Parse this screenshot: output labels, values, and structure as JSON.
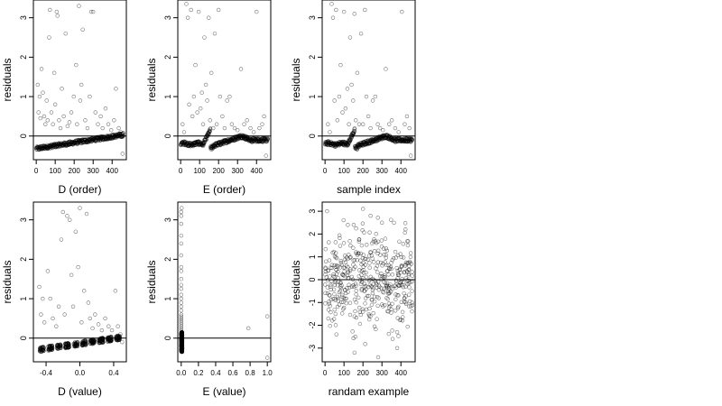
{
  "chart_data": [
    {
      "type": "scatter",
      "xlabel": "D (order)",
      "ylabel": "residuals",
      "xlim": [
        -15,
        475
      ],
      "ylim": [
        -0.6,
        3.45
      ],
      "xticks": [
        0,
        100,
        200,
        300,
        400
      ],
      "xtick_labels": [
        "0",
        "100",
        "200",
        "300",
        "400"
      ],
      "yticks": [
        0,
        1,
        2,
        3
      ],
      "ytick_labels": [
        "0",
        "1",
        "2",
        "3"
      ],
      "hline": 0,
      "gen": {
        "kind": "trend",
        "n": 460,
        "x0": 0,
        "x1": 460,
        "y0": -0.32,
        "y1": 0.03,
        "spread": 0.05
      },
      "points": [
        [
          8,
          1.3
        ],
        [
          12,
          0.6
        ],
        [
          18,
          1.0
        ],
        [
          22,
          0.45
        ],
        [
          28,
          1.7
        ],
        [
          35,
          1.1
        ],
        [
          42,
          0.5
        ],
        [
          48,
          0.3
        ],
        [
          55,
          0.9
        ],
        [
          60,
          0.4
        ],
        [
          68,
          2.5
        ],
        [
          72,
          3.2
        ],
        [
          80,
          0.6
        ],
        [
          88,
          0.3
        ],
        [
          95,
          1.6
        ],
        [
          100,
          0.8
        ],
        [
          108,
          3.15
        ],
        [
          112,
          3.05
        ],
        [
          120,
          0.4
        ],
        [
          128,
          0.2
        ],
        [
          135,
          1.2
        ],
        [
          145,
          0.5
        ],
        [
          155,
          2.6
        ],
        [
          165,
          0.25
        ],
        [
          175,
          0.35
        ],
        [
          185,
          0.6
        ],
        [
          198,
          1.0
        ],
        [
          210,
          1.8
        ],
        [
          215,
          0.3
        ],
        [
          225,
          3.3
        ],
        [
          232,
          0.9
        ],
        [
          238,
          1.3
        ],
        [
          245,
          2.7
        ],
        [
          258,
          0.4
        ],
        [
          270,
          0.2
        ],
        [
          282,
          1.0
        ],
        [
          290,
          3.15
        ],
        [
          300,
          3.15
        ],
        [
          312,
          0.6
        ],
        [
          325,
          0.3
        ],
        [
          340,
          0.5
        ],
        [
          350,
          0.2
        ],
        [
          365,
          0.7
        ],
        [
          380,
          0.3
        ],
        [
          395,
          0.15
        ],
        [
          410,
          0.4
        ],
        [
          420,
          1.2
        ],
        [
          435,
          0.2
        ],
        [
          445,
          0.1
        ],
        [
          455,
          -0.45
        ]
      ]
    },
    {
      "type": "scatter",
      "xlabel": "E (order)",
      "ylabel": "residuals",
      "xlim": [
        -15,
        475
      ],
      "ylim": [
        -0.6,
        3.45
      ],
      "xticks": [
        0,
        100,
        200,
        300,
        400
      ],
      "xtick_labels": [
        "0",
        "100",
        "200",
        "300",
        "400"
      ],
      "yticks": [
        0,
        1,
        2,
        3
      ],
      "ytick_labels": [
        "0",
        "1",
        "2",
        "3"
      ],
      "hline": 0,
      "gen": {
        "kind": "zigzag",
        "n": 460,
        "x0": 0,
        "x1": 460,
        "spread": 0.05
      },
      "points": [
        [
          10,
          0.3
        ],
        [
          18,
          0.1
        ],
        [
          30,
          3.35
        ],
        [
          38,
          3.0
        ],
        [
          45,
          0.8
        ],
        [
          55,
          3.2
        ],
        [
          62,
          0.5
        ],
        [
          70,
          1.0
        ],
        [
          78,
          1.8
        ],
        [
          88,
          0.6
        ],
        [
          95,
          3.15
        ],
        [
          105,
          0.7
        ],
        [
          112,
          1.1
        ],
        [
          118,
          0.3
        ],
        [
          125,
          2.5
        ],
        [
          133,
          1.3
        ],
        [
          140,
          0.9
        ],
        [
          148,
          3.0
        ],
        [
          155,
          0.4
        ],
        [
          162,
          1.6
        ],
        [
          172,
          0.2
        ],
        [
          180,
          2.6
        ],
        [
          190,
          0.3
        ],
        [
          200,
          3.2
        ],
        [
          208,
          1.0
        ],
        [
          220,
          0.5
        ],
        [
          232,
          0.2
        ],
        [
          245,
          0.9
        ],
        [
          258,
          1.0
        ],
        [
          270,
          0.3
        ],
        [
          285,
          0.2
        ],
        [
          300,
          0.15
        ],
        [
          318,
          1.7
        ],
        [
          335,
          0.3
        ],
        [
          350,
          0.4
        ],
        [
          368,
          0.2
        ],
        [
          385,
          0.1
        ],
        [
          400,
          3.15
        ],
        [
          415,
          0.2
        ],
        [
          430,
          0.3
        ],
        [
          440,
          0.5
        ],
        [
          450,
          -0.5
        ]
      ]
    },
    {
      "type": "scatter",
      "xlabel": "sample index",
      "ylabel": "residuals",
      "xlim": [
        -15,
        475
      ],
      "ylim": [
        -0.6,
        3.45
      ],
      "xticks": [
        0,
        100,
        200,
        300,
        400
      ],
      "xtick_labels": [
        "0",
        "100",
        "200",
        "300",
        "400"
      ],
      "yticks": [
        0,
        1,
        2,
        3
      ],
      "ytick_labels": [
        "0",
        "1",
        "2",
        "3"
      ],
      "hline": 0,
      "gen": {
        "kind": "zigzag",
        "n": 460,
        "x0": 0,
        "x1": 460,
        "spread": 0.05
      },
      "points": [
        [
          15,
          0.3
        ],
        [
          25,
          0.1
        ],
        [
          35,
          3.35
        ],
        [
          42,
          3.0
        ],
        [
          50,
          0.9
        ],
        [
          58,
          3.2
        ],
        [
          65,
          0.4
        ],
        [
          75,
          1.0
        ],
        [
          82,
          1.8
        ],
        [
          92,
          0.6
        ],
        [
          100,
          3.15
        ],
        [
          108,
          0.7
        ],
        [
          118,
          1.2
        ],
        [
          126,
          0.3
        ],
        [
          132,
          2.5
        ],
        [
          140,
          1.3
        ],
        [
          148,
          0.9
        ],
        [
          155,
          3.1
        ],
        [
          162,
          0.4
        ],
        [
          170,
          1.6
        ],
        [
          180,
          0.3
        ],
        [
          190,
          2.6
        ],
        [
          200,
          0.3
        ],
        [
          210,
          3.2
        ],
        [
          218,
          1.0
        ],
        [
          228,
          0.5
        ],
        [
          240,
          0.2
        ],
        [
          252,
          0.9
        ],
        [
          265,
          1.0
        ],
        [
          278,
          0.3
        ],
        [
          290,
          0.2
        ],
        [
          305,
          0.15
        ],
        [
          320,
          1.7
        ],
        [
          338,
          0.3
        ],
        [
          352,
          0.4
        ],
        [
          370,
          0.2
        ],
        [
          388,
          0.1
        ],
        [
          405,
          3.15
        ],
        [
          420,
          0.3
        ],
        [
          432,
          0.5
        ],
        [
          445,
          0.2
        ],
        [
          452,
          -0.5
        ]
      ]
    },
    {
      "type": "scatter",
      "xlabel": "D (value)",
      "ylabel": "residuals",
      "xlim": [
        -0.55,
        0.55
      ],
      "ylim": [
        -0.6,
        3.45
      ],
      "xticks": [
        -0.4,
        0.0,
        0.4
      ],
      "xtick_labels": [
        "-0.4",
        "0.0",
        "0.4"
      ],
      "yticks": [
        0,
        1,
        2,
        3
      ],
      "ytick_labels": [
        "0",
        "1",
        "2",
        "3"
      ],
      "hline": 0,
      "gen": {
        "kind": "clusters",
        "n": 460,
        "x0": -0.5,
        "x1": 0.5,
        "y0": -0.3,
        "y1": 0.02,
        "spread": 0.06
      },
      "points": [
        [
          -0.48,
          1.3
        ],
        [
          -0.46,
          0.6
        ],
        [
          -0.44,
          1.0
        ],
        [
          -0.42,
          0.4
        ],
        [
          -0.38,
          1.7
        ],
        [
          -0.35,
          1.0
        ],
        [
          -0.32,
          0.5
        ],
        [
          -0.28,
          0.3
        ],
        [
          -0.25,
          0.8
        ],
        [
          -0.22,
          2.5
        ],
        [
          -0.2,
          3.2
        ],
        [
          -0.18,
          0.6
        ],
        [
          -0.15,
          3.1
        ],
        [
          -0.12,
          3.0
        ],
        [
          -0.1,
          1.6
        ],
        [
          -0.08,
          0.8
        ],
        [
          -0.05,
          2.7
        ],
        [
          -0.02,
          1.8
        ],
        [
          0.0,
          3.3
        ],
        [
          0.02,
          0.4
        ],
        [
          0.05,
          1.2
        ],
        [
          0.08,
          3.15
        ],
        [
          0.1,
          0.9
        ],
        [
          0.12,
          0.5
        ],
        [
          0.15,
          0.25
        ],
        [
          0.18,
          0.6
        ],
        [
          0.22,
          0.35
        ],
        [
          0.26,
          0.2
        ],
        [
          0.3,
          0.5
        ],
        [
          0.34,
          0.3
        ],
        [
          0.38,
          0.2
        ],
        [
          0.42,
          1.2
        ],
        [
          0.45,
          0.3
        ],
        [
          0.48,
          0.1
        ],
        [
          0.5,
          -0.1
        ]
      ]
    },
    {
      "type": "scatter",
      "xlabel": "E (value)",
      "ylabel": "residuals",
      "xlim": [
        -0.04,
        1.04
      ],
      "ylim": [
        -0.6,
        3.45
      ],
      "xticks": [
        0.0,
        0.2,
        0.4,
        0.6,
        0.8,
        1.0
      ],
      "xtick_labels": [
        "0.0",
        "0.2",
        "0.4",
        "0.6",
        "0.8",
        "1.0"
      ],
      "yticks": [
        0,
        1,
        2,
        3
      ],
      "ytick_labels": [
        "0",
        "1",
        "2",
        "3"
      ],
      "hline": 0,
      "gen": {
        "kind": "column",
        "n": 460,
        "x0": 0.0,
        "x1": 0.012,
        "y0": -0.35,
        "y1": 0.15
      },
      "points": [
        [
          0.0,
          3.2
        ],
        [
          0.0,
          3.1
        ],
        [
          0.005,
          3.3
        ],
        [
          0.0,
          2.9
        ],
        [
          0.0,
          2.6
        ],
        [
          0.0,
          2.4
        ],
        [
          0.0,
          2.1
        ],
        [
          0.0,
          1.8
        ],
        [
          0.0,
          1.7
        ],
        [
          0.0,
          1.5
        ],
        [
          0.0,
          1.35
        ],
        [
          0.0,
          1.25
        ],
        [
          0.0,
          1.1
        ],
        [
          0.0,
          1.0
        ],
        [
          0.0,
          0.9
        ],
        [
          0.0,
          0.8
        ],
        [
          0.0,
          0.7
        ],
        [
          0.0,
          0.6
        ],
        [
          0.0,
          0.55
        ],
        [
          0.0,
          0.5
        ],
        [
          0.0,
          0.45
        ],
        [
          0.0,
          0.4
        ],
        [
          0.0,
          0.35
        ],
        [
          0.0,
          0.3
        ],
        [
          0.0,
          0.25
        ],
        [
          0.0,
          0.2
        ],
        [
          0.78,
          0.25
        ],
        [
          1.0,
          0.55
        ],
        [
          1.0,
          -0.5
        ]
      ]
    },
    {
      "type": "scatter",
      "xlabel": "randam example",
      "ylabel": "residuals",
      "xlim": [
        -15,
        475
      ],
      "ylim": [
        -3.6,
        3.4
      ],
      "xticks": [
        0,
        100,
        200,
        300,
        400
      ],
      "xtick_labels": [
        "0",
        "100",
        "200",
        "300",
        "400"
      ],
      "yticks": [
        -3,
        -2,
        -1,
        0,
        1,
        2,
        3
      ],
      "ytick_labels": [
        "-3",
        "-2",
        "-1",
        "0",
        "1",
        "2",
        "3"
      ],
      "hline": 0,
      "gen": {
        "kind": "normal",
        "n": 460,
        "x0": 0,
        "x1": 460,
        "sd": 1.0
      },
      "points": [
        [
          200,
          3.1
        ],
        [
          240,
          2.8
        ],
        [
          120,
          2.4
        ],
        [
          300,
          2.5
        ],
        [
          160,
          -2.5
        ],
        [
          60,
          -2.4
        ],
        [
          280,
          -3.4
        ],
        [
          380,
          -2.3
        ]
      ]
    }
  ]
}
